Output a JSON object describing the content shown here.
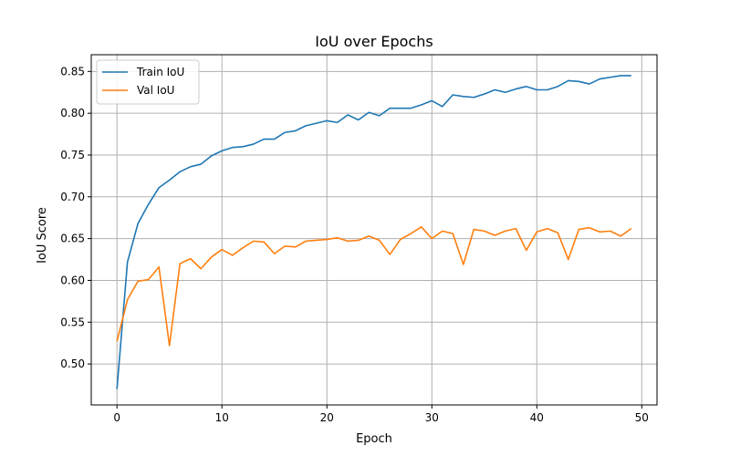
{
  "chart_data": {
    "type": "line",
    "title": "IoU over Epochs",
    "xlabel": "Epoch",
    "ylabel": "IoU Score",
    "xlim": [
      -2.45,
      51.45
    ],
    "ylim": [
      0.451,
      0.87
    ],
    "xticks": [
      0,
      10,
      20,
      30,
      40,
      50
    ],
    "yticks": [
      0.5,
      0.55,
      0.6,
      0.65,
      0.7,
      0.75,
      0.8,
      0.85
    ],
    "xtick_labels": [
      "0",
      "10",
      "20",
      "30",
      "40",
      "50"
    ],
    "ytick_labels": [
      "0.50",
      "0.55",
      "0.60",
      "0.65",
      "0.70",
      "0.75",
      "0.80",
      "0.85"
    ],
    "grid": true,
    "legend_position": "top-left",
    "x": [
      0,
      1,
      2,
      3,
      4,
      5,
      6,
      7,
      8,
      9,
      10,
      11,
      12,
      13,
      14,
      15,
      16,
      17,
      18,
      19,
      20,
      21,
      22,
      23,
      24,
      25,
      26,
      27,
      28,
      29,
      30,
      31,
      32,
      33,
      34,
      35,
      36,
      37,
      38,
      39,
      40,
      41,
      42,
      43,
      44,
      45,
      46,
      47,
      48,
      49
    ],
    "series": [
      {
        "name": "Train IoU",
        "color": "#1f77b4",
        "values": [
          0.47,
          0.622,
          0.668,
          0.691,
          0.711,
          0.72,
          0.73,
          0.736,
          0.739,
          0.749,
          0.755,
          0.759,
          0.76,
          0.763,
          0.769,
          0.769,
          0.777,
          0.779,
          0.785,
          0.788,
          0.791,
          0.789,
          0.798,
          0.792,
          0.801,
          0.797,
          0.806,
          0.806,
          0.806,
          0.81,
          0.815,
          0.808,
          0.822,
          0.82,
          0.819,
          0.823,
          0.828,
          0.825,
          0.829,
          0.832,
          0.828,
          0.828,
          0.832,
          0.839,
          0.838,
          0.835,
          0.841,
          0.843,
          0.845,
          0.845
        ]
      },
      {
        "name": "Val IoU",
        "color": "#ff7f0e",
        "values": [
          0.527,
          0.577,
          0.599,
          0.601,
          0.616,
          0.522,
          0.62,
          0.626,
          0.614,
          0.628,
          0.637,
          0.63,
          0.639,
          0.647,
          0.646,
          0.632,
          0.641,
          0.64,
          0.647,
          0.648,
          0.649,
          0.651,
          0.647,
          0.648,
          0.653,
          0.648,
          0.631,
          0.649,
          0.656,
          0.664,
          0.65,
          0.659,
          0.656,
          0.619,
          0.661,
          0.659,
          0.654,
          0.659,
          0.662,
          0.636,
          0.658,
          0.662,
          0.657,
          0.625,
          0.661,
          0.663,
          0.658,
          0.659,
          0.653,
          0.662
        ]
      }
    ]
  }
}
